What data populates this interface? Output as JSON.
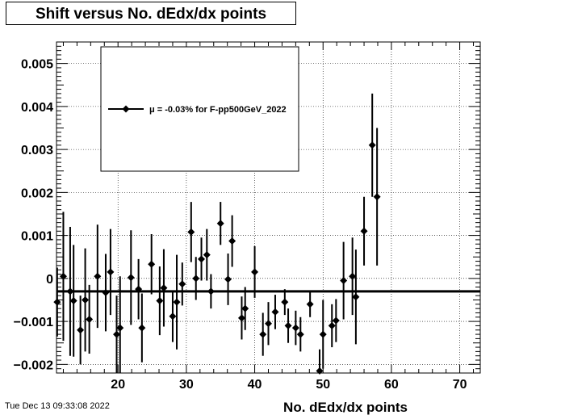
{
  "title": "Shift versus No. dEdx/dx points",
  "timestamp": "Tue Dec 13 09:33:08 2022",
  "chart_data": {
    "type": "scatter",
    "title": "Shift versus No. dEdx/dx points",
    "xlabel": "No. dEdx/dx points",
    "ylabel": "",
    "xlim": [
      11,
      73
    ],
    "ylim": [
      -0.0022,
      0.0055
    ],
    "x_ticks": [
      20,
      30,
      40,
      50,
      60,
      70
    ],
    "x_tick_labels": [
      "20",
      "30",
      "40",
      "50",
      "60",
      "70"
    ],
    "y_ticks": [
      -0.002,
      -0.001,
      0,
      0.001,
      0.002,
      0.003,
      0.004,
      0.005
    ],
    "y_tick_labels": [
      "−0.002",
      "−0.001",
      "0",
      "0.001",
      "0.002",
      "0.003",
      "0.004",
      "0.005"
    ],
    "grid": true,
    "legend_position": "top-left",
    "fit_line": -0.0003,
    "series": [
      {
        "name": "μ = -0.03% for F-pp500GeV_2022",
        "x": [
          11.1,
          12.0,
          13.0,
          13.5,
          14.5,
          15.2,
          15.8,
          17.0,
          18.2,
          18.9,
          19.8,
          20.3,
          21.9,
          23.0,
          23.5,
          24.9,
          26.1,
          26.7,
          28.0,
          28.6,
          29.4,
          30.7,
          31.4,
          32.2,
          33.0,
          33.6,
          35.0,
          36.1,
          36.7,
          38.1,
          38.6,
          40.0,
          41.2,
          42.0,
          43.0,
          44.4,
          44.9,
          46.0,
          46.7,
          48.1,
          49.5,
          50.0,
          51.3,
          51.9,
          53.0,
          54.3,
          54.8,
          56.0,
          57.2,
          57.9
        ],
        "y": [
          -0.00055,
          5e-05,
          -0.0003,
          -0.00052,
          -0.0012,
          -0.0005,
          -0.00095,
          5e-05,
          -0.00033,
          0.00015,
          -0.0013,
          -0.00115,
          2e-05,
          -0.00025,
          -0.00115,
          0.00033,
          -0.00052,
          -0.00022,
          -0.00088,
          -0.00055,
          -0.00013,
          0.00108,
          0.0,
          0.00045,
          0.00055,
          -0.0003,
          0.00128,
          -2e-05,
          0.00087,
          -0.00092,
          -0.0007,
          0.00015,
          -0.0013,
          -0.00105,
          -0.00078,
          -0.00055,
          -0.0011,
          -0.00115,
          -0.0013,
          -0.0006,
          -0.00215,
          -0.0013,
          -0.0011,
          -0.00098,
          -5e-05,
          5e-05,
          -0.00043,
          0.0011,
          0.0031,
          0.0019
        ],
        "err": [
          0.0008,
          0.0015,
          0.0015,
          0.0013,
          0.0008,
          0.0012,
          0.0008,
          0.0012,
          0.0009,
          0.001,
          0.0009,
          0.0012,
          0.0011,
          0.0007,
          0.0008,
          0.0007,
          0.0008,
          0.0009,
          0.0006,
          0.0011,
          0.0005,
          0.0007,
          0.0005,
          0.0005,
          0.0006,
          0.0004,
          0.0005,
          0.0006,
          0.0006,
          0.0005,
          0.0005,
          0.0006,
          0.0005,
          0.0005,
          0.0004,
          0.0003,
          0.0004,
          0.0004,
          0.0004,
          0.0003,
          0.0005,
          0.0008,
          0.0005,
          0.0005,
          0.0009,
          0.0009,
          0.0011,
          0.0008,
          0.0012,
          0.0016
        ]
      }
    ]
  }
}
